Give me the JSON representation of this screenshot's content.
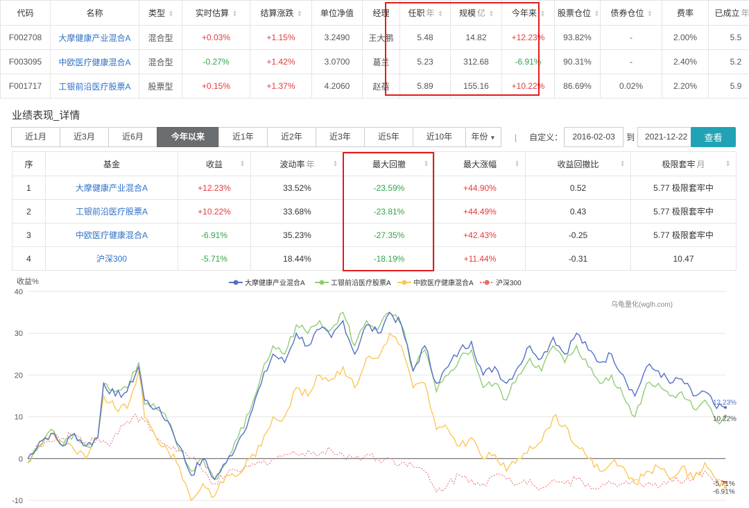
{
  "fund_table": {
    "headers": [
      {
        "label": "代码",
        "unit": "",
        "sort": false
      },
      {
        "label": "名称",
        "unit": "",
        "sort": false
      },
      {
        "label": "类型",
        "unit": "",
        "sort": true
      },
      {
        "label": "实时估算",
        "unit": "",
        "sort": true
      },
      {
        "label": "结算涨跌",
        "unit": "",
        "sort": true
      },
      {
        "label": "单位净值",
        "unit": "",
        "sort": false
      },
      {
        "label": "经理",
        "unit": "",
        "sort": false
      },
      {
        "label": "任职",
        "unit": "年",
        "sort": true
      },
      {
        "label": "规模",
        "unit": "亿",
        "sort": true
      },
      {
        "label": "今年来",
        "unit": "",
        "sort": true
      },
      {
        "label": "股票仓位",
        "unit": "",
        "sort": true
      },
      {
        "label": "债券仓位",
        "unit": "",
        "sort": true
      },
      {
        "label": "费率",
        "unit": "",
        "sort": false
      },
      {
        "label": "已成立",
        "unit": "年",
        "sort": true
      }
    ],
    "rows": [
      [
        "F002708",
        "大摩健康产业混合A",
        "混合型",
        "+0.03%",
        "+1.15%",
        "3.2490",
        "王大鹏",
        "5.48",
        "14.82",
        "+12.23%",
        "93.82%",
        "-",
        "2.00%",
        "5.5"
      ],
      [
        "F003095",
        "中欧医疗健康混合A",
        "混合型",
        "-0.27%",
        "+1.42%",
        "3.0700",
        "葛兰",
        "5.23",
        "312.68",
        "-6.91%",
        "90.31%",
        "-",
        "2.40%",
        "5.2"
      ],
      [
        "F001717",
        "工银前沿医疗股票A",
        "股票型",
        "+0.15%",
        "+1.37%",
        "4.2060",
        "赵蓓",
        "5.89",
        "155.16",
        "+10.22%",
        "86.69%",
        "0.02%",
        "2.20%",
        "5.9"
      ]
    ]
  },
  "section_title": "业绩表现_详情",
  "ranges": [
    "近1月",
    "近3月",
    "近6月",
    "今年以来",
    "近1年",
    "近2年",
    "近3年",
    "近5年",
    "近10年",
    "年份"
  ],
  "active_range": "今年以来",
  "custom": {
    "label": "自定义：",
    "start": "2016-02-03",
    "to": "到",
    "end": "2021-12-22",
    "separator": "|"
  },
  "query_label": "查看",
  "perf_table": {
    "headers": [
      {
        "label": "序",
        "unit": "",
        "sort": false
      },
      {
        "label": "基金",
        "unit": "",
        "sort": false
      },
      {
        "label": "收益",
        "unit": "",
        "sort": true
      },
      {
        "label": "波动率",
        "unit": "年",
        "sort": true
      },
      {
        "label": "最大回撤",
        "unit": "",
        "sort": true
      },
      {
        "label": "最大涨幅",
        "unit": "",
        "sort": true
      },
      {
        "label": "收益回撤比",
        "unit": "",
        "sort": true
      },
      {
        "label": "极限套牢",
        "unit": "月",
        "sort": true
      }
    ],
    "rows": [
      [
        "1",
        "大摩健康产业混合A",
        "+12.23%",
        "33.52%",
        "-23.59%",
        "+44.90%",
        "0.52",
        "5.77 极限套牢中"
      ],
      [
        "2",
        "工银前沿医疗股票A",
        "+10.22%",
        "33.68%",
        "-23.81%",
        "+44.49%",
        "0.43",
        "5.77 极限套牢中"
      ],
      [
        "3",
        "中欧医疗健康混合A",
        "-6.91%",
        "35.23%",
        "-27.35%",
        "+42.43%",
        "-0.25",
        "5.77 极限套牢中"
      ],
      [
        "4",
        "沪深300",
        "-5.71%",
        "18.44%",
        "-18.19%",
        "+11.44%",
        "-0.31",
        "10.47"
      ]
    ]
  },
  "chart_data": {
    "type": "line",
    "ylabel": "收益%",
    "ylim": [
      -10,
      40
    ],
    "yticks": [
      -10,
      0,
      10,
      20,
      30,
      40
    ],
    "watermark": "乌龟量化(wglh.com)",
    "legend_position": "top",
    "x_points": 240,
    "series": [
      {
        "name": "大摩健康产业混合A",
        "color": "#5470c6",
        "dashed": false,
        "final_label": "12.23%",
        "final": 12.23,
        "anchors": [
          [
            0,
            0
          ],
          [
            4,
            4
          ],
          [
            8,
            6
          ],
          [
            12,
            3
          ],
          [
            16,
            6
          ],
          [
            20,
            3
          ],
          [
            24,
            5
          ],
          [
            26,
            18
          ],
          [
            30,
            15
          ],
          [
            34,
            16
          ],
          [
            38,
            22
          ],
          [
            40,
            14
          ],
          [
            44,
            12
          ],
          [
            48,
            9
          ],
          [
            52,
            3
          ],
          [
            56,
            -4
          ],
          [
            60,
            0
          ],
          [
            64,
            -5
          ],
          [
            68,
            -1
          ],
          [
            72,
            4
          ],
          [
            76,
            10
          ],
          [
            80,
            18
          ],
          [
            84,
            25
          ],
          [
            88,
            23
          ],
          [
            92,
            30
          ],
          [
            96,
            27
          ],
          [
            100,
            31
          ],
          [
            104,
            29
          ],
          [
            108,
            33
          ],
          [
            112,
            25
          ],
          [
            116,
            32
          ],
          [
            120,
            30
          ],
          [
            124,
            35
          ],
          [
            128,
            32
          ],
          [
            132,
            21
          ],
          [
            136,
            27
          ],
          [
            140,
            18
          ],
          [
            144,
            22
          ],
          [
            148,
            26
          ],
          [
            152,
            28
          ],
          [
            156,
            20
          ],
          [
            160,
            22
          ],
          [
            164,
            18
          ],
          [
            168,
            22
          ],
          [
            172,
            27
          ],
          [
            176,
            24
          ],
          [
            180,
            29
          ],
          [
            184,
            25
          ],
          [
            188,
            30
          ],
          [
            192,
            26
          ],
          [
            196,
            23
          ],
          [
            200,
            25
          ],
          [
            204,
            20
          ],
          [
            208,
            15
          ],
          [
            212,
            22
          ],
          [
            216,
            21
          ],
          [
            220,
            18
          ],
          [
            224,
            19
          ],
          [
            228,
            15
          ],
          [
            232,
            16
          ],
          [
            236,
            12
          ],
          [
            239,
            12.23
          ]
        ]
      },
      {
        "name": "工银前沿医疗股票A",
        "color": "#91cc75",
        "dashed": false,
        "final_label": "10.22%",
        "final": 10.22,
        "anchors": [
          [
            0,
            -1
          ],
          [
            4,
            3
          ],
          [
            8,
            7
          ],
          [
            12,
            3
          ],
          [
            16,
            6
          ],
          [
            20,
            3
          ],
          [
            24,
            5
          ],
          [
            26,
            18
          ],
          [
            30,
            16
          ],
          [
            34,
            17
          ],
          [
            38,
            23
          ],
          [
            40,
            13
          ],
          [
            44,
            12
          ],
          [
            48,
            9
          ],
          [
            52,
            2
          ],
          [
            56,
            -3
          ],
          [
            60,
            0
          ],
          [
            64,
            -5
          ],
          [
            68,
            -1
          ],
          [
            72,
            5
          ],
          [
            76,
            11
          ],
          [
            80,
            20
          ],
          [
            84,
            27
          ],
          [
            88,
            25
          ],
          [
            92,
            32
          ],
          [
            96,
            30
          ],
          [
            100,
            33
          ],
          [
            104,
            31
          ],
          [
            108,
            35
          ],
          [
            112,
            27
          ],
          [
            116,
            33
          ],
          [
            120,
            31
          ],
          [
            124,
            35
          ],
          [
            128,
            32
          ],
          [
            132,
            21
          ],
          [
            136,
            26
          ],
          [
            140,
            16
          ],
          [
            144,
            20
          ],
          [
            148,
            24
          ],
          [
            152,
            26
          ],
          [
            156,
            17
          ],
          [
            160,
            18
          ],
          [
            164,
            14
          ],
          [
            168,
            20
          ],
          [
            172,
            24
          ],
          [
            176,
            21
          ],
          [
            180,
            27
          ],
          [
            184,
            23
          ],
          [
            188,
            27
          ],
          [
            192,
            22
          ],
          [
            196,
            18
          ],
          [
            200,
            20
          ],
          [
            204,
            15
          ],
          [
            208,
            10
          ],
          [
            212,
            18
          ],
          [
            216,
            18
          ],
          [
            220,
            15
          ],
          [
            224,
            16
          ],
          [
            228,
            12
          ],
          [
            232,
            14
          ],
          [
            236,
            9
          ],
          [
            239,
            10.22
          ]
        ]
      },
      {
        "name": "中欧医疗健康混合A",
        "color": "#fac858",
        "dashed": false,
        "final_label": "-6.91%",
        "final": -6.91,
        "anchors": [
          [
            0,
            -1
          ],
          [
            4,
            3
          ],
          [
            8,
            6
          ],
          [
            12,
            4
          ],
          [
            16,
            2
          ],
          [
            20,
            0
          ],
          [
            24,
            5
          ],
          [
            26,
            15
          ],
          [
            30,
            12
          ],
          [
            34,
            12
          ],
          [
            38,
            21
          ],
          [
            40,
            10
          ],
          [
            44,
            5
          ],
          [
            48,
            2
          ],
          [
            52,
            -2
          ],
          [
            56,
            -10
          ],
          [
            60,
            -6
          ],
          [
            64,
            -9
          ],
          [
            68,
            -4
          ],
          [
            72,
            -4
          ],
          [
            76,
            0
          ],
          [
            80,
            3
          ],
          [
            84,
            10
          ],
          [
            88,
            10
          ],
          [
            92,
            17
          ],
          [
            96,
            15
          ],
          [
            100,
            20
          ],
          [
            104,
            19
          ],
          [
            108,
            22
          ],
          [
            112,
            17
          ],
          [
            116,
            24
          ],
          [
            120,
            24
          ],
          [
            124,
            30
          ],
          [
            128,
            27
          ],
          [
            132,
            17
          ],
          [
            136,
            18
          ],
          [
            140,
            7
          ],
          [
            144,
            7
          ],
          [
            148,
            3
          ],
          [
            152,
            5
          ],
          [
            156,
            0
          ],
          [
            160,
            1
          ],
          [
            164,
            -3
          ],
          [
            168,
            0
          ],
          [
            172,
            3
          ],
          [
            176,
            4
          ],
          [
            180,
            10
          ],
          [
            184,
            8
          ],
          [
            188,
            3
          ],
          [
            192,
            0
          ],
          [
            196,
            -3
          ],
          [
            200,
            -1
          ],
          [
            204,
            -2
          ],
          [
            208,
            -6
          ],
          [
            212,
            -3
          ],
          [
            216,
            -2
          ],
          [
            220,
            -5
          ],
          [
            224,
            -2
          ],
          [
            228,
            -5
          ],
          [
            232,
            -1
          ],
          [
            236,
            -5
          ],
          [
            239,
            -6.91
          ]
        ]
      },
      {
        "name": "沪深300",
        "color": "#ee6666",
        "dashed": true,
        "final_label": "-5.71%",
        "final": -5.71,
        "anchors": [
          [
            0,
            0
          ],
          [
            4,
            3
          ],
          [
            8,
            4
          ],
          [
            12,
            5
          ],
          [
            16,
            6
          ],
          [
            20,
            4
          ],
          [
            24,
            5
          ],
          [
            28,
            3
          ],
          [
            32,
            8
          ],
          [
            36,
            10
          ],
          [
            40,
            9
          ],
          [
            44,
            5
          ],
          [
            48,
            3
          ],
          [
            52,
            2
          ],
          [
            56,
            0
          ],
          [
            60,
            -3
          ],
          [
            64,
            -6
          ],
          [
            68,
            -4
          ],
          [
            72,
            -3
          ],
          [
            76,
            -2
          ],
          [
            80,
            -1
          ],
          [
            84,
            0
          ],
          [
            88,
            1
          ],
          [
            92,
            1
          ],
          [
            96,
            2
          ],
          [
            100,
            1
          ],
          [
            104,
            2
          ],
          [
            108,
            1
          ],
          [
            112,
            0
          ],
          [
            116,
            1
          ],
          [
            120,
            0
          ],
          [
            124,
            0
          ],
          [
            128,
            -1
          ],
          [
            132,
            -2
          ],
          [
            136,
            -3
          ],
          [
            140,
            -8
          ],
          [
            144,
            -6
          ],
          [
            148,
            -4
          ],
          [
            152,
            -5
          ],
          [
            156,
            -6
          ],
          [
            160,
            -4
          ],
          [
            164,
            -5
          ],
          [
            168,
            -6
          ],
          [
            172,
            -5
          ],
          [
            176,
            -7
          ],
          [
            180,
            -5
          ],
          [
            184,
            -6
          ],
          [
            188,
            -5
          ],
          [
            192,
            -6
          ],
          [
            196,
            -7
          ],
          [
            200,
            -6
          ],
          [
            204,
            -6
          ],
          [
            208,
            -5
          ],
          [
            212,
            -6
          ],
          [
            216,
            -7
          ],
          [
            220,
            -5
          ],
          [
            224,
            -6
          ],
          [
            228,
            -5
          ],
          [
            232,
            -3
          ],
          [
            236,
            -5
          ],
          [
            239,
            -5.71
          ]
        ]
      }
    ]
  }
}
